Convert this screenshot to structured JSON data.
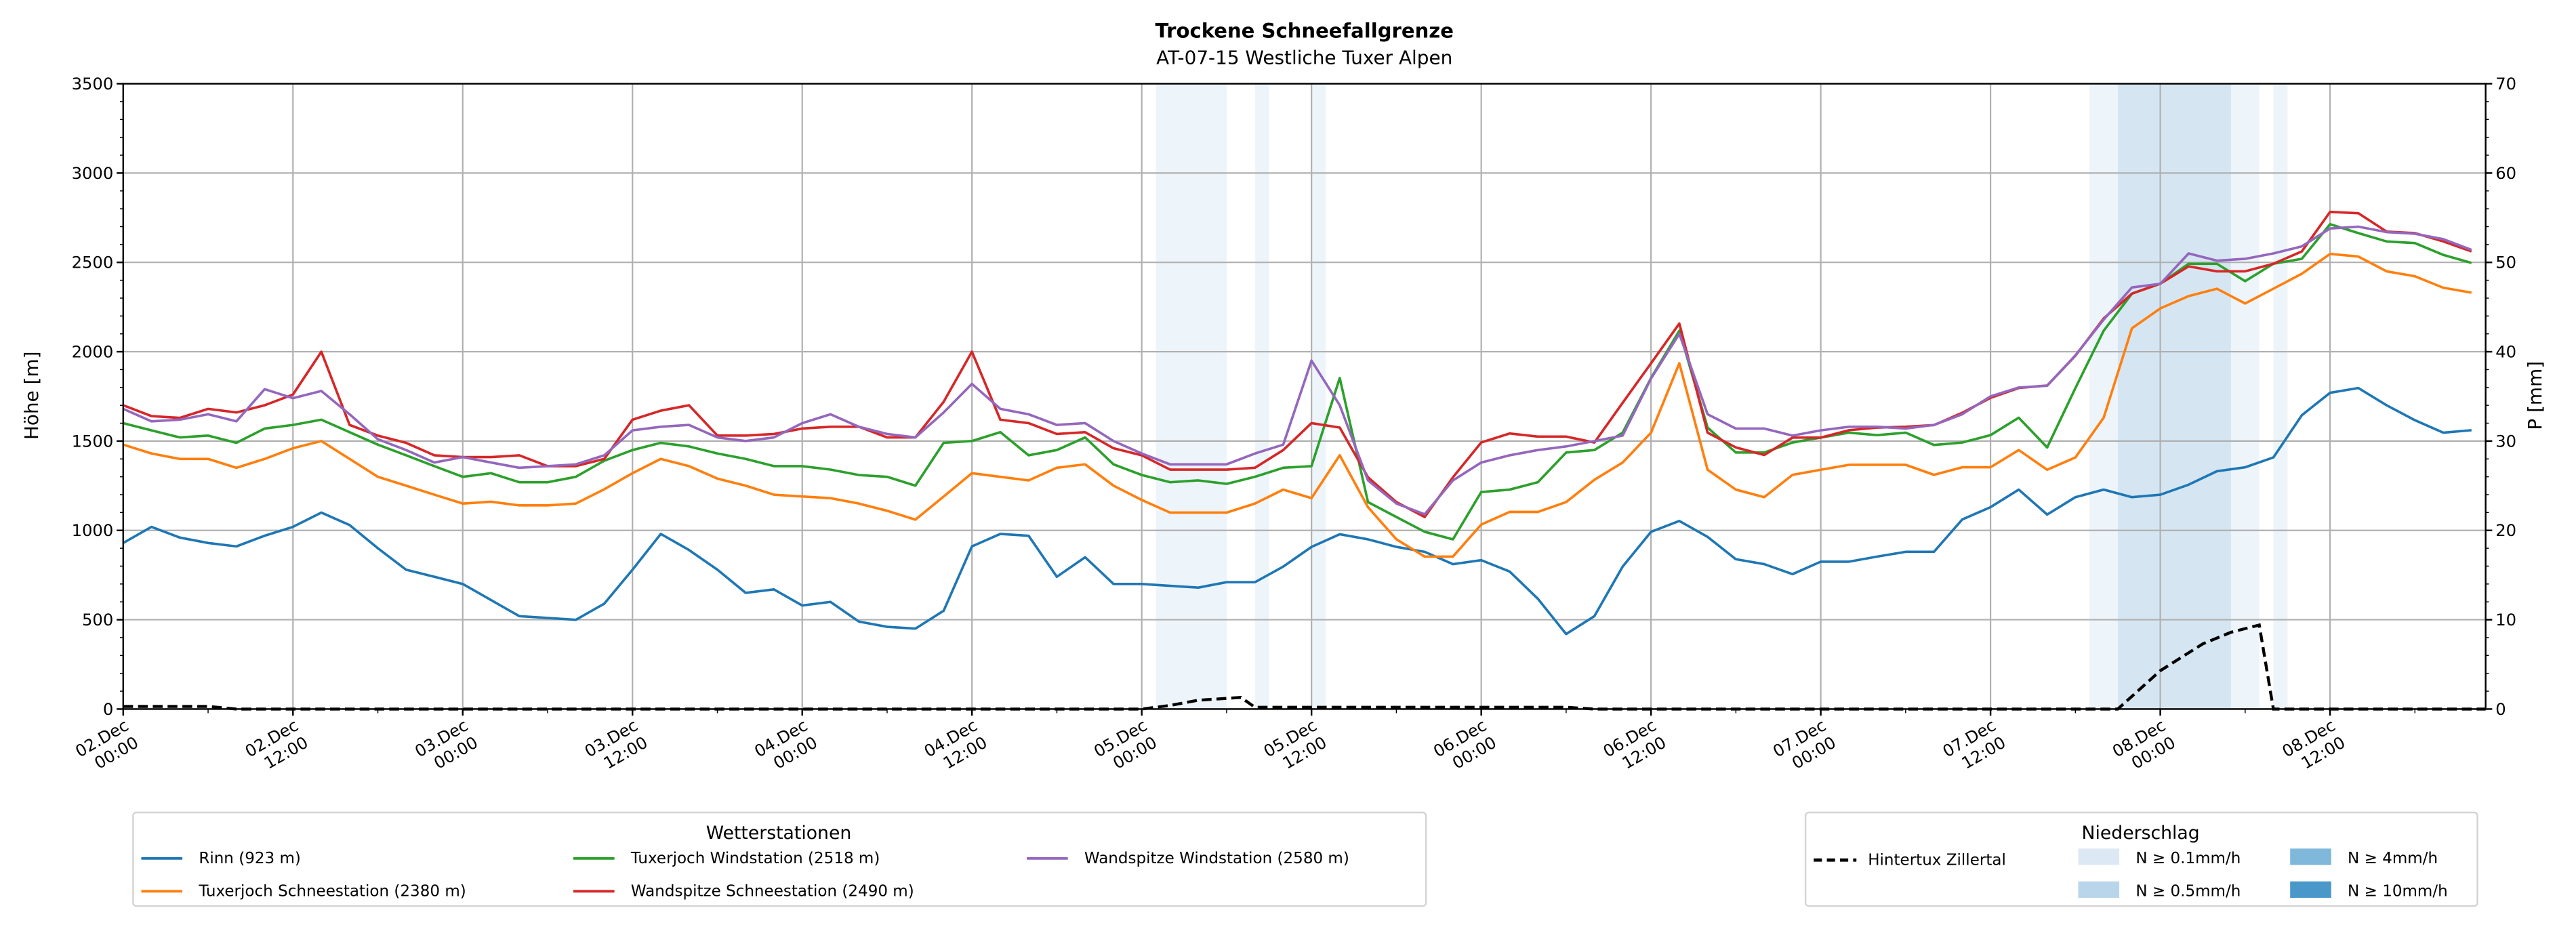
{
  "chart_data": {
    "type": "line",
    "title": "Trockene Schneefallgrenze",
    "subtitle": "AT-07-15 Westliche Tuxer Alpen",
    "ylabel": "Höhe [m]",
    "y2label": "P [mm]",
    "ylim": [
      0,
      3500
    ],
    "y2lim": [
      0,
      70
    ],
    "yticks": [
      "0",
      "500",
      "1000",
      "1500",
      "2000",
      "2500",
      "3000",
      "3500"
    ],
    "y2ticks": [
      "0",
      "10",
      "20",
      "30",
      "40",
      "50",
      "60",
      "70"
    ],
    "x_unit": "hours since 02.Dec 00:00",
    "xlim": [
      0,
      167
    ],
    "xticks": [
      {
        "hour": 0,
        "date": "02.Dec",
        "time": "00:00"
      },
      {
        "hour": 12,
        "date": "02.Dec",
        "time": "12:00"
      },
      {
        "hour": 24,
        "date": "03.Dec",
        "time": "00:00"
      },
      {
        "hour": 36,
        "date": "03.Dec",
        "time": "12:00"
      },
      {
        "hour": 48,
        "date": "04.Dec",
        "time": "00:00"
      },
      {
        "hour": 60,
        "date": "04.Dec",
        "time": "12:00"
      },
      {
        "hour": 72,
        "date": "05.Dec",
        "time": "00:00"
      },
      {
        "hour": 84,
        "date": "05.Dec",
        "time": "12:00"
      },
      {
        "hour": 96,
        "date": "06.Dec",
        "time": "00:00"
      },
      {
        "hour": 108,
        "date": "06.Dec",
        "time": "12:00"
      },
      {
        "hour": 120,
        "date": "07.Dec",
        "time": "00:00"
      },
      {
        "hour": 132,
        "date": "07.Dec",
        "time": "12:00"
      },
      {
        "hour": 144,
        "date": "08.Dec",
        "time": "00:00"
      },
      {
        "hour": 156,
        "date": "08.Dec",
        "time": "12:00"
      }
    ],
    "grid": true,
    "x_step_hours": 2,
    "series": [
      {
        "name": "Rinn (923 m)",
        "color": "#1f77b4",
        "values": [
          930,
          1020,
          960,
          930,
          910,
          970,
          1020,
          1100,
          1030,
          900,
          780,
          740,
          700,
          610,
          520,
          510,
          500,
          590,
          780,
          980,
          890,
          780,
          650,
          670,
          580,
          600,
          490,
          460,
          450,
          550,
          910,
          980,
          970,
          740,
          850,
          700,
          700,
          690,
          680,
          710,
          710,
          797,
          908,
          978,
          950,
          908,
          880,
          811,
          833,
          770,
          617,
          420,
          520,
          797,
          992,
          1053,
          964,
          839,
          811,
          755,
          825,
          825,
          853,
          880,
          880,
          1061,
          1130,
          1228,
          1089,
          1186,
          1228,
          1186,
          1200,
          1256,
          1331,
          1353,
          1408,
          1644,
          1770,
          1797,
          1700,
          1617,
          1547,
          1561
        ]
      },
      {
        "name": "Tuxerjoch Schneestation (2380 m)",
        "color": "#ff7f0e",
        "values": [
          1480,
          1430,
          1400,
          1400,
          1350,
          1400,
          1460,
          1500,
          1400,
          1300,
          1250,
          1200,
          1150,
          1160,
          1140,
          1140,
          1150,
          1230,
          1320,
          1400,
          1360,
          1290,
          1250,
          1200,
          1190,
          1180,
          1150,
          1110,
          1060,
          1190,
          1320,
          1300,
          1280,
          1350,
          1370,
          1250,
          1170,
          1100,
          1100,
          1100,
          1150,
          1228,
          1180,
          1420,
          1130,
          950,
          853,
          853,
          1033,
          1103,
          1103,
          1158,
          1283,
          1380,
          1547,
          1936,
          1339,
          1228,
          1186,
          1311,
          1339,
          1367,
          1367,
          1367,
          1311,
          1353,
          1353,
          1450,
          1339,
          1408,
          1631,
          2131,
          2242,
          2311,
          2353,
          2270,
          2353,
          2436,
          2547,
          2533,
          2450,
          2422,
          2358,
          2331
        ]
      },
      {
        "name": "Tuxerjoch Windstation (2518 m)",
        "color": "#2ca02c",
        "values": [
          1600,
          1560,
          1520,
          1530,
          1490,
          1570,
          1590,
          1620,
          1550,
          1480,
          1420,
          1360,
          1300,
          1320,
          1270,
          1270,
          1300,
          1390,
          1450,
          1490,
          1470,
          1430,
          1400,
          1360,
          1360,
          1340,
          1310,
          1300,
          1250,
          1490,
          1500,
          1550,
          1420,
          1450,
          1520,
          1370,
          1310,
          1270,
          1280,
          1260,
          1300,
          1350,
          1360,
          1853,
          1158,
          1075,
          992,
          950,
          1214,
          1228,
          1270,
          1436,
          1450,
          1547,
          1853,
          2117,
          1575,
          1436,
          1436,
          1492,
          1519,
          1547,
          1533,
          1547,
          1478,
          1492,
          1533,
          1631,
          1464,
          1797,
          2117,
          2325,
          2381,
          2492,
          2492,
          2395,
          2492,
          2520,
          2714,
          2664,
          2617,
          2608,
          2542,
          2497
        ]
      },
      {
        "name": "Wandspitze Schneestation (2490 m)",
        "color": "#d62728",
        "values": [
          1700,
          1640,
          1630,
          1680,
          1660,
          1700,
          1760,
          2000,
          1590,
          1530,
          1490,
          1420,
          1410,
          1410,
          1420,
          1360,
          1360,
          1400,
          1620,
          1670,
          1700,
          1530,
          1530,
          1540,
          1570,
          1580,
          1580,
          1520,
          1520,
          1720,
          2000,
          1620,
          1600,
          1540,
          1550,
          1460,
          1420,
          1340,
          1340,
          1340,
          1350,
          1450,
          1600,
          1575,
          1297,
          1158,
          1075,
          1297,
          1492,
          1542,
          1525,
          1525,
          1492,
          1714,
          1936,
          2158,
          1547,
          1464,
          1422,
          1519,
          1519,
          1561,
          1575,
          1580,
          1589,
          1658,
          1742,
          1797,
          1811,
          1978,
          2186,
          2325,
          2381,
          2478,
          2450,
          2450,
          2492,
          2561,
          2783,
          2775,
          2672,
          2664,
          2617,
          2561
        ]
      },
      {
        "name": "Wandspitze Windstation (2580 m)",
        "color": "#9467bd",
        "values": [
          1680,
          1610,
          1620,
          1650,
          1610,
          1790,
          1740,
          1780,
          1650,
          1510,
          1450,
          1380,
          1410,
          1380,
          1350,
          1360,
          1370,
          1420,
          1560,
          1580,
          1590,
          1520,
          1500,
          1520,
          1600,
          1650,
          1580,
          1540,
          1520,
          1660,
          1820,
          1680,
          1650,
          1590,
          1600,
          1500,
          1430,
          1370,
          1370,
          1370,
          1430,
          1480,
          1950,
          1700,
          1280,
          1150,
          1090,
          1280,
          1380,
          1420,
          1450,
          1470,
          1500,
          1530,
          1850,
          2100,
          1650,
          1570,
          1570,
          1530,
          1560,
          1580,
          1580,
          1570,
          1590,
          1650,
          1750,
          1800,
          1810,
          1980,
          2180,
          2360,
          2380,
          2550,
          2510,
          2520,
          2550,
          2590,
          2690,
          2700,
          2670,
          2660,
          2630,
          2570
        ]
      }
    ],
    "precipitation": {
      "name": "Hintertux Zillertal",
      "color": "#000000",
      "points_hour_mm": [
        [
          0,
          0.3
        ],
        [
          6,
          0.3
        ],
        [
          8,
          0
        ],
        [
          72,
          0
        ],
        [
          74,
          0.4
        ],
        [
          76,
          1.0
        ],
        [
          78,
          1.2
        ],
        [
          79,
          1.3
        ],
        [
          80,
          0.2
        ],
        [
          102,
          0.2
        ],
        [
          104,
          0
        ],
        [
          141,
          0
        ],
        [
          144,
          4.3
        ],
        [
          147,
          7.3
        ],
        [
          149,
          8.6
        ],
        [
          151,
          9.4
        ],
        [
          152,
          0
        ],
        [
          167,
          0
        ]
      ]
    },
    "precip_bands": [
      {
        "start": 73,
        "end": 78,
        "level": 0
      },
      {
        "start": 80,
        "end": 81,
        "level": 0
      },
      {
        "start": 84,
        "end": 85,
        "level": 0
      },
      {
        "start": 139,
        "end": 141,
        "level": 0
      },
      {
        "start": 141,
        "end": 149,
        "level": 1
      },
      {
        "start": 149,
        "end": 151,
        "level": 0
      },
      {
        "start": 152,
        "end": 153,
        "level": 0
      }
    ],
    "legend_stations": {
      "title": "Wetterstationen",
      "placement": "bottom-left"
    },
    "legend_precip": {
      "title": "Niederschlag",
      "placement": "bottom-right",
      "line_label": "Hintertux Zillertal",
      "levels": [
        {
          "label": "N ≥ 0.1mm/h",
          "color": "#dce9f5"
        },
        {
          "label": "N ≥ 0.5mm/h",
          "color": "#b9d5ea"
        },
        {
          "label": "N ≥ 4mm/h",
          "color": "#7fb8da"
        },
        {
          "label": "N ≥ 10mm/h",
          "color": "#4a98c9"
        }
      ]
    }
  }
}
